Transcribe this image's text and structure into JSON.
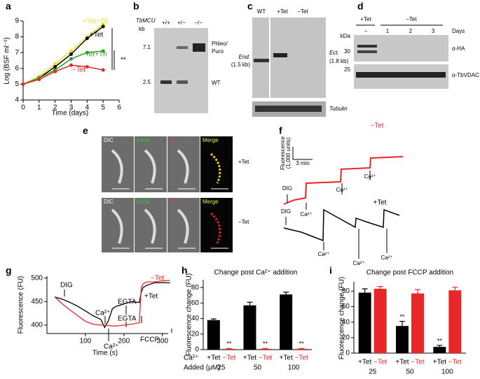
{
  "chart_data": [
    {
      "type": "line",
      "panel_label": "a",
      "x_label": "Time (days)",
      "y_label": "Log (BSF ml⁻¹)",
      "x": [
        0,
        1,
        2,
        3,
        4,
        5
      ],
      "xlim": [
        0,
        6
      ],
      "xticks": [
        0,
        1,
        2,
        3,
        4,
        5,
        6
      ],
      "ylim": [
        4,
        9
      ],
      "yticks": [
        4,
        5,
        6,
        7,
        8,
        9
      ],
      "markers": true,
      "series": [
        {
          "name": "+Tet+Th",
          "color": "#f2e227",
          "values": [
            5,
            5.5,
            6.3,
            7.1,
            8.0,
            8.8
          ]
        },
        {
          "name": "+Tet",
          "color": "#000000",
          "values": [
            5,
            5.4,
            6.1,
            6.9,
            7.9,
            8.65
          ]
        },
        {
          "name": "−Tet+Th",
          "color": "#2ca02c",
          "values": [
            5,
            5.4,
            5.9,
            6.6,
            7.0,
            7.1
          ]
        },
        {
          "name": "−Tet",
          "color": "#e8272a",
          "values": [
            5,
            5.3,
            5.8,
            6.2,
            6.1,
            5.9
          ]
        }
      ],
      "annotations": [
        "**"
      ]
    },
    {
      "type": "line",
      "panel_label": "g",
      "x_label": "Time (s)",
      "y_label": "Fluorescence (FU)",
      "x": [
        20,
        40,
        60,
        80,
        100,
        120,
        140,
        150,
        160,
        170,
        180,
        200,
        220,
        240,
        245,
        250,
        260,
        280,
        300,
        320
      ],
      "xlim": [
        0,
        315
      ],
      "xticks": [
        100,
        200,
        300
      ],
      "ylim": [
        382,
        504
      ],
      "yticks": [
        400,
        450,
        500
      ],
      "markers": false,
      "series": [
        {
          "name": "+Tet",
          "color": "#000000",
          "values": [
            460,
            455,
            448,
            440,
            430,
            420,
            412,
            395,
            410,
            435,
            440,
            445,
            450,
            448,
            470,
            480,
            485,
            490,
            490,
            490
          ]
        },
        {
          "name": "−Tet",
          "color": "#e8272a",
          "values": [
            460,
            445,
            432,
            420,
            408,
            402,
            400,
            400,
            399,
            398,
            398,
            400,
            402,
            405,
            480,
            488,
            492,
            492,
            494,
            495
          ]
        }
      ],
      "annotations": [
        "DIG",
        "Ca²⁺",
        "EGTA",
        "EGTA",
        "Ca²⁺",
        "FCCP"
      ]
    },
    {
      "type": "bar",
      "panel_label": "h",
      "title": "Change post Ca²⁺ addition",
      "y_label": "Fluorescence change (FU)",
      "x_label_1": "Ca²⁺",
      "x_label_2": "Added (μM)",
      "categories": [
        "25",
        "50",
        "100"
      ],
      "ylim": [
        0,
        90
      ],
      "yticks": [
        0,
        20,
        40,
        60,
        80
      ],
      "significance_label": "**",
      "series": [
        {
          "name": "+Tet",
          "color": "#000000",
          "values": [
            38,
            57,
            71
          ],
          "errors": [
            1.5,
            4,
            3
          ]
        },
        {
          "name": "−Tet",
          "color": "#e8272a",
          "values": [
            1,
            1,
            1
          ],
          "errors": [
            0.5,
            0.5,
            0.5
          ]
        }
      ]
    },
    {
      "type": "bar",
      "panel_label": "i",
      "title": "Change post FCCP addition",
      "y_label": "Fluorescence change (FU)",
      "categories": [
        "25",
        "50",
        "100"
      ],
      "ylim": [
        0,
        92
      ],
      "yticks": [
        0,
        20,
        40,
        60,
        80
      ],
      "significance_label": "**",
      "series": [
        {
          "name": "+Tet",
          "color": "#000000",
          "values": [
            78,
            35,
            8
          ],
          "errors": [
            5,
            6,
            2
          ]
        },
        {
          "name": "−Tet",
          "color": "#e8272a",
          "values": [
            83,
            77,
            81
          ],
          "errors": [
            3,
            5,
            4
          ]
        }
      ]
    }
  ],
  "panels": {
    "b": {
      "label": "b",
      "gene": "TbMCU",
      "unit": "kb",
      "lanes": [
        "+/+",
        "+/−",
        "−/−"
      ],
      "sizes": [
        "7.1",
        "2.5"
      ],
      "band_upper": "Phleo/",
      "band_upper_2": "Puro",
      "band_lower": "WT"
    },
    "c": {
      "label": "c",
      "lanes": [
        "WT",
        "+Tet",
        "−Tet"
      ],
      "end": "End.",
      "end_size": "(1.5 kb)",
      "ect": "Ect.",
      "ect_size": "(1.8 kb)",
      "loading": "Tubulin"
    },
    "d": {
      "label": "d",
      "groups": [
        "+Tet",
        "−Tet"
      ],
      "lanes": [
        "–",
        "1",
        "2",
        "3"
      ],
      "days": "Days",
      "unit": "kDa",
      "sizes": [
        "30",
        "25"
      ],
      "probes": [
        "α-HA",
        "α-TbVDAC"
      ]
    },
    "e": {
      "label": "e",
      "channels": [
        "DIC",
        "α-HA",
        "MT",
        "Merge"
      ],
      "conditions": [
        "+Tet",
        "−Tet"
      ]
    },
    "f": {
      "label": "f",
      "scale_y_1": "Fluorescence",
      "scale_y_2": "(1,000 units)",
      "scale_x": "3 min",
      "minus": "−Tet",
      "plus": "+Tet",
      "dig": "DIG",
      "ca": "Ca²⁺"
    }
  }
}
